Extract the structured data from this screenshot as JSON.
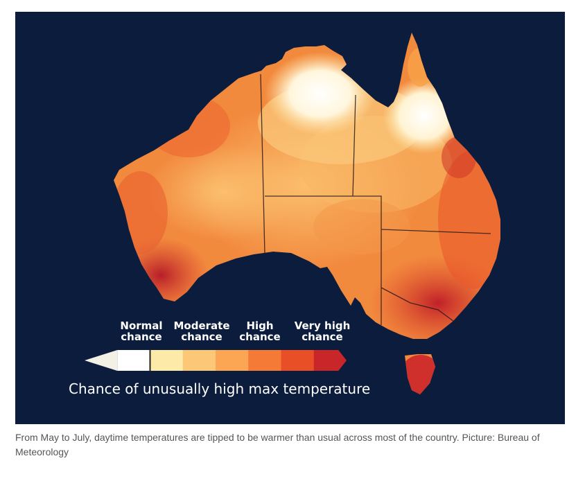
{
  "map": {
    "legend": {
      "labels": [
        "Normal\nchance",
        "Moderate\nchance",
        "High\nchance",
        "Very high\nchance"
      ],
      "title": "Chance of unusually high max temperature",
      "colors": [
        "#f3f0e6",
        "#ffffff",
        "#fde9a8",
        "#fcc877",
        "#fca552",
        "#f57a35",
        "#e84f27",
        "#c9262a"
      ]
    }
  },
  "caption": "From May to July, daytime temperatures are tipped to be warmer than usual across most of the country. Picture: Bureau of Meteorology"
}
